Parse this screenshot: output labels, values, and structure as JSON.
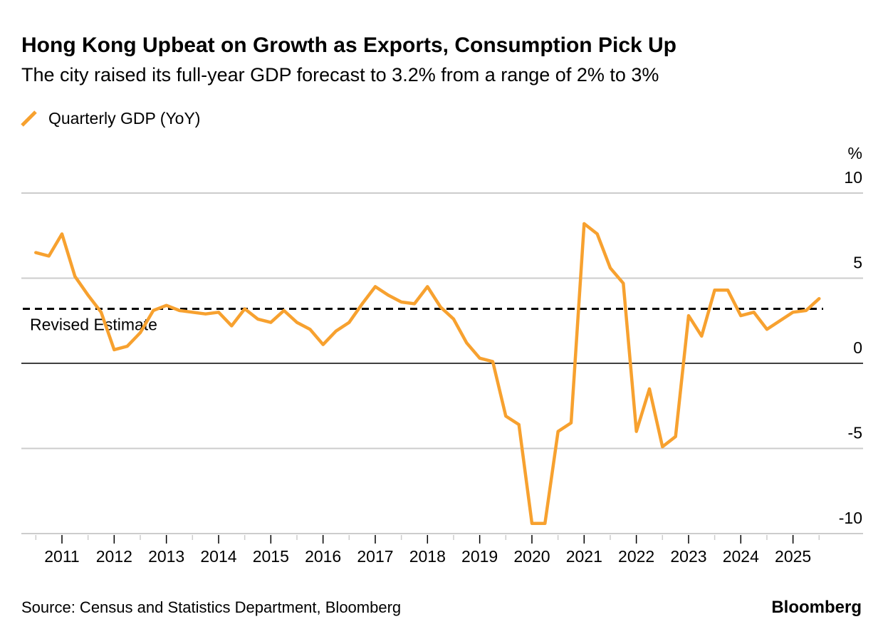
{
  "chart_data": {
    "type": "line",
    "title": "Hong Kong Upbeat on Growth as Exports, Consumption Pick Up",
    "subtitle": "The city raised its full-year GDP forecast to 3.2% from a range of 2% to 3%",
    "ylabel": "%",
    "ylim": [
      -10,
      10
    ],
    "yticks": [
      10,
      5,
      0,
      -5,
      -10
    ],
    "ytick_labels": [
      "10",
      "5",
      "0",
      "-5",
      "-10"
    ],
    "xtick_labels": [
      "2011",
      "2012",
      "2013",
      "2014",
      "2015",
      "2016",
      "2017",
      "2018",
      "2019",
      "2020",
      "2021",
      "2022",
      "2023",
      "2024",
      "2025"
    ],
    "grid": true,
    "legend_placement": "top-left",
    "series": [
      {
        "name": "Quarterly GDP (YoY)",
        "color": "#f7a12f",
        "x": [
          "2010 Q3",
          "2010 Q4",
          "2011 Q1",
          "2011 Q2",
          "2011 Q3",
          "2011 Q4",
          "2012 Q1",
          "2012 Q2",
          "2012 Q3",
          "2012 Q4",
          "2013 Q1",
          "2013 Q2",
          "2013 Q3",
          "2013 Q4",
          "2014 Q1",
          "2014 Q2",
          "2014 Q3",
          "2014 Q4",
          "2015 Q1",
          "2015 Q2",
          "2015 Q3",
          "2015 Q4",
          "2016 Q1",
          "2016 Q2",
          "2016 Q3",
          "2016 Q4",
          "2017 Q1",
          "2017 Q2",
          "2017 Q3",
          "2017 Q4",
          "2018 Q1",
          "2018 Q2",
          "2018 Q3",
          "2018 Q4",
          "2019 Q1",
          "2019 Q2",
          "2019 Q3",
          "2019 Q4",
          "2020 Q1",
          "2020 Q2",
          "2020 Q3",
          "2020 Q4",
          "2021 Q1",
          "2021 Q2",
          "2021 Q3",
          "2021 Q4",
          "2022 Q1",
          "2022 Q2",
          "2022 Q3",
          "2022 Q4",
          "2023 Q1",
          "2023 Q2",
          "2023 Q3",
          "2023 Q4",
          "2024 Q1",
          "2024 Q2",
          "2024 Q3",
          "2024 Q4",
          "2025 Q1",
          "2025 Q2",
          "2025 Q3"
        ],
        "values": [
          6.5,
          6.3,
          7.6,
          5.1,
          4.0,
          3.0,
          0.8,
          1.0,
          1.8,
          3.1,
          3.4,
          3.1,
          3.0,
          2.9,
          3.0,
          2.2,
          3.2,
          2.6,
          2.4,
          3.1,
          2.4,
          2.0,
          1.1,
          1.9,
          2.4,
          3.5,
          4.5,
          4.0,
          3.6,
          3.5,
          4.5,
          3.3,
          2.6,
          1.2,
          0.3,
          0.1,
          -3.1,
          -3.6,
          -9.4,
          -9.4,
          -4.0,
          -3.5,
          8.2,
          7.6,
          5.6,
          4.7,
          -4.0,
          -1.5,
          -4.9,
          -4.3,
          2.8,
          1.6,
          4.3,
          4.3,
          2.8,
          3.0,
          2.0,
          2.5,
          3.0,
          3.1,
          3.8
        ]
      }
    ],
    "reference_line": {
      "label": "Revised Estimate",
      "value": 3.2,
      "style": "dashed",
      "color": "#000000"
    }
  },
  "footer": {
    "source": "Source: Census and Statistics Department, Bloomberg",
    "brand": "Bloomberg"
  }
}
